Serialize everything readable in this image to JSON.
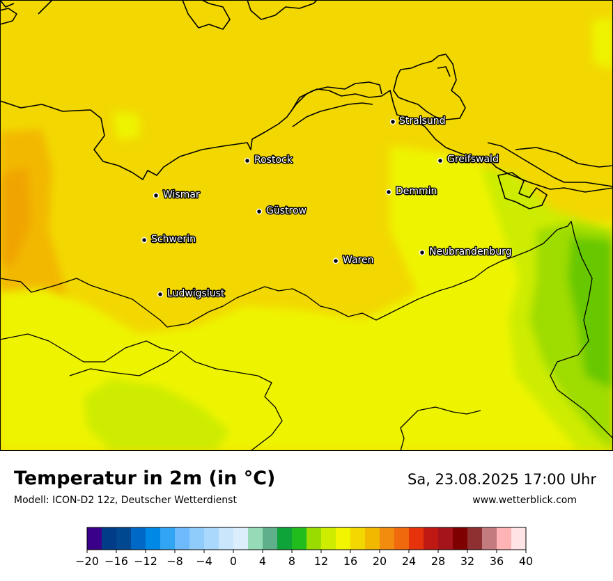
{
  "map": {
    "title": "Temperatur in 2m (in °C)",
    "model": "Modell: ICON-D2 12z, Deutscher Wetterdienst",
    "datetime": "Sa, 23.08.2025 17:00 Uhr",
    "website": "www.wetterblick.com",
    "cities": [
      {
        "name": "Stralsund"
      },
      {
        "name": "Rostock"
      },
      {
        "name": "Greifswald"
      },
      {
        "name": "Wismar"
      },
      {
        "name": "Demmin"
      },
      {
        "name": "Güstrow"
      },
      {
        "name": "Schwerin"
      },
      {
        "name": "Neubrandenburg"
      },
      {
        "name": "Waren"
      },
      {
        "name": "Ludwigslust"
      }
    ],
    "temperature_colors": {
      "dominant": "#f2d800",
      "warm": "#f2b800",
      "mild": "#eef400",
      "cool": "#cdec00",
      "cooler": "#9fdc00",
      "coolest": "#68c800"
    }
  },
  "colorbar": {
    "unit": "°C",
    "ticks": [
      "−20",
      "−16",
      "−12",
      "−8",
      "−4",
      "0",
      "4",
      "8",
      "12",
      "16",
      "20",
      "24",
      "28",
      "32",
      "36",
      "40"
    ],
    "colors": [
      "#3a0089",
      "#003c87",
      "#00488f",
      "#0069c8",
      "#0088e6",
      "#31a4f4",
      "#6fbafd",
      "#8fcbfb",
      "#a9d8fc",
      "#c9e6fc",
      "#dcedfc",
      "#95dbb7",
      "#5faf8a",
      "#0ea43a",
      "#21bd1d",
      "#9bdc00",
      "#cdec00",
      "#f2f400",
      "#f2d800",
      "#f2b800",
      "#f18c0f",
      "#f0690d",
      "#e6330c",
      "#c01813",
      "#a5131b",
      "#7f0000",
      "#8e2f32",
      "#c47b80",
      "#feb4b5",
      "#ffe4e6"
    ]
  }
}
